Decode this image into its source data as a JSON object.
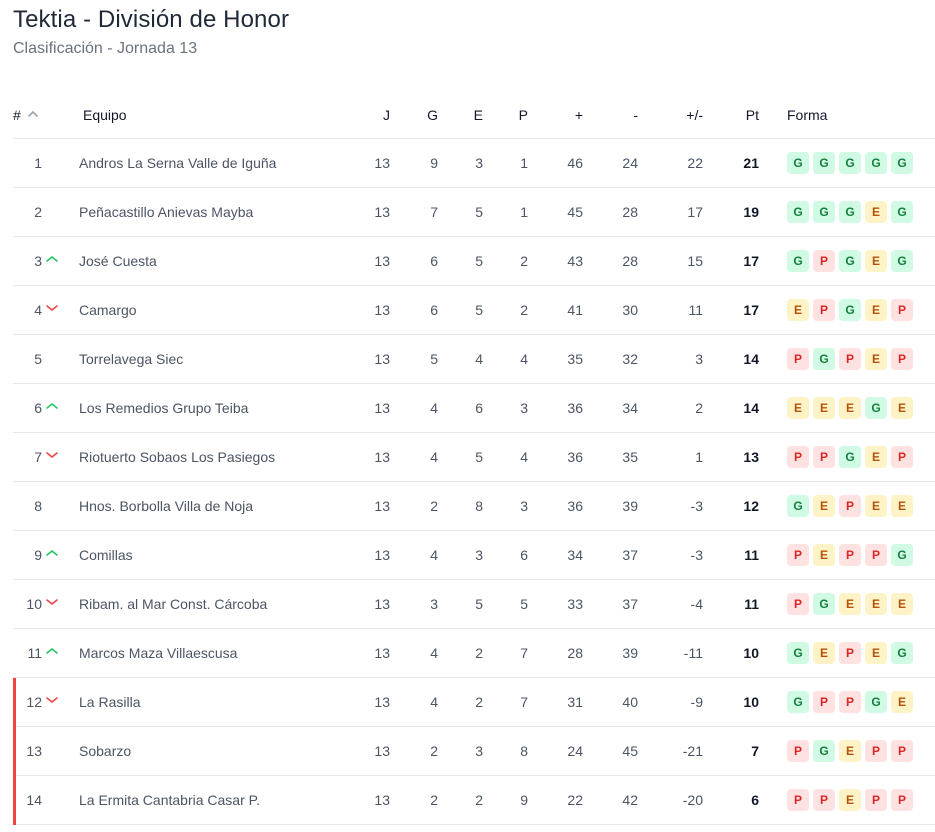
{
  "page": {
    "title": "Tektia - División de Honor",
    "subtitle": "Clasificación - Jornada 13"
  },
  "colors": {
    "win": "#15803d",
    "draw": "#b45309",
    "loss": "#dc2626",
    "relegation": "#ef4444",
    "up": "#22c55e",
    "down": "#ef4444"
  },
  "headers": {
    "pos": "#",
    "team": "Equipo",
    "j": "J",
    "g": "G",
    "e": "E",
    "p": "P",
    "gf": "+",
    "ga": "-",
    "gd": "+/-",
    "pt": "Pt",
    "form": "Forma"
  },
  "rows": [
    {
      "pos": "1",
      "trend": "",
      "team": "Andros La Serna Valle de Iguña",
      "j": "13",
      "g": "9",
      "e": "3",
      "p": "1",
      "gf": "46",
      "ga": "24",
      "gd": "22",
      "pt": "21",
      "form": [
        "G",
        "G",
        "G",
        "G",
        "G"
      ],
      "rel": false
    },
    {
      "pos": "2",
      "trend": "",
      "team": "Peñacastillo Anievas Mayba",
      "j": "13",
      "g": "7",
      "e": "5",
      "p": "1",
      "gf": "45",
      "ga": "28",
      "gd": "17",
      "pt": "19",
      "form": [
        "G",
        "G",
        "G",
        "E",
        "G"
      ],
      "rel": false
    },
    {
      "pos": "3",
      "trend": "up",
      "team": "José Cuesta",
      "j": "13",
      "g": "6",
      "e": "5",
      "p": "2",
      "gf": "43",
      "ga": "28",
      "gd": "15",
      "pt": "17",
      "form": [
        "G",
        "P",
        "G",
        "E",
        "G"
      ],
      "rel": false
    },
    {
      "pos": "4",
      "trend": "down",
      "team": "Camargo",
      "j": "13",
      "g": "6",
      "e": "5",
      "p": "2",
      "gf": "41",
      "ga": "30",
      "gd": "11",
      "pt": "17",
      "form": [
        "E",
        "P",
        "G",
        "E",
        "P"
      ],
      "rel": false
    },
    {
      "pos": "5",
      "trend": "",
      "team": "Torrelavega Siec",
      "j": "13",
      "g": "5",
      "e": "4",
      "p": "4",
      "gf": "35",
      "ga": "32",
      "gd": "3",
      "pt": "14",
      "form": [
        "P",
        "G",
        "P",
        "E",
        "P"
      ],
      "rel": false
    },
    {
      "pos": "6",
      "trend": "up",
      "team": "Los Remedios Grupo Teiba",
      "j": "13",
      "g": "4",
      "e": "6",
      "p": "3",
      "gf": "36",
      "ga": "34",
      "gd": "2",
      "pt": "14",
      "form": [
        "E",
        "E",
        "E",
        "G",
        "E"
      ],
      "rel": false
    },
    {
      "pos": "7",
      "trend": "down",
      "team": "Riotuerto Sobaos Los Pasiegos",
      "j": "13",
      "g": "4",
      "e": "5",
      "p": "4",
      "gf": "36",
      "ga": "35",
      "gd": "1",
      "pt": "13",
      "form": [
        "P",
        "P",
        "G",
        "E",
        "P"
      ],
      "rel": false
    },
    {
      "pos": "8",
      "trend": "",
      "team": "Hnos. Borbolla Villa de Noja",
      "j": "13",
      "g": "2",
      "e": "8",
      "p": "3",
      "gf": "36",
      "ga": "39",
      "gd": "-3",
      "pt": "12",
      "form": [
        "G",
        "E",
        "P",
        "E",
        "E"
      ],
      "rel": false
    },
    {
      "pos": "9",
      "trend": "up",
      "team": "Comillas",
      "j": "13",
      "g": "4",
      "e": "3",
      "p": "6",
      "gf": "34",
      "ga": "37",
      "gd": "-3",
      "pt": "11",
      "form": [
        "P",
        "E",
        "P",
        "P",
        "G"
      ],
      "rel": false
    },
    {
      "pos": "10",
      "trend": "down",
      "team": "Ribam. al Mar Const. Cárcoba",
      "j": "13",
      "g": "3",
      "e": "5",
      "p": "5",
      "gf": "33",
      "ga": "37",
      "gd": "-4",
      "pt": "11",
      "form": [
        "P",
        "G",
        "E",
        "E",
        "E"
      ],
      "rel": false
    },
    {
      "pos": "11",
      "trend": "up",
      "team": "Marcos Maza Villaescusa",
      "j": "13",
      "g": "4",
      "e": "2",
      "p": "7",
      "gf": "28",
      "ga": "39",
      "gd": "-11",
      "pt": "10",
      "form": [
        "G",
        "E",
        "P",
        "E",
        "G"
      ],
      "rel": false
    },
    {
      "pos": "12",
      "trend": "down",
      "team": "La Rasilla",
      "j": "13",
      "g": "4",
      "e": "2",
      "p": "7",
      "gf": "31",
      "ga": "40",
      "gd": "-9",
      "pt": "10",
      "form": [
        "G",
        "P",
        "P",
        "G",
        "E"
      ],
      "rel": true
    },
    {
      "pos": "13",
      "trend": "",
      "team": "Sobarzo",
      "j": "13",
      "g": "2",
      "e": "3",
      "p": "8",
      "gf": "24",
      "ga": "45",
      "gd": "-21",
      "pt": "7",
      "form": [
        "P",
        "G",
        "E",
        "P",
        "P"
      ],
      "rel": true
    },
    {
      "pos": "14",
      "trend": "",
      "team": "La Ermita Cantabria Casar P.",
      "j": "13",
      "g": "2",
      "e": "2",
      "p": "9",
      "gf": "22",
      "ga": "42",
      "gd": "-20",
      "pt": "6",
      "form": [
        "P",
        "P",
        "E",
        "P",
        "P"
      ],
      "rel": true
    }
  ]
}
